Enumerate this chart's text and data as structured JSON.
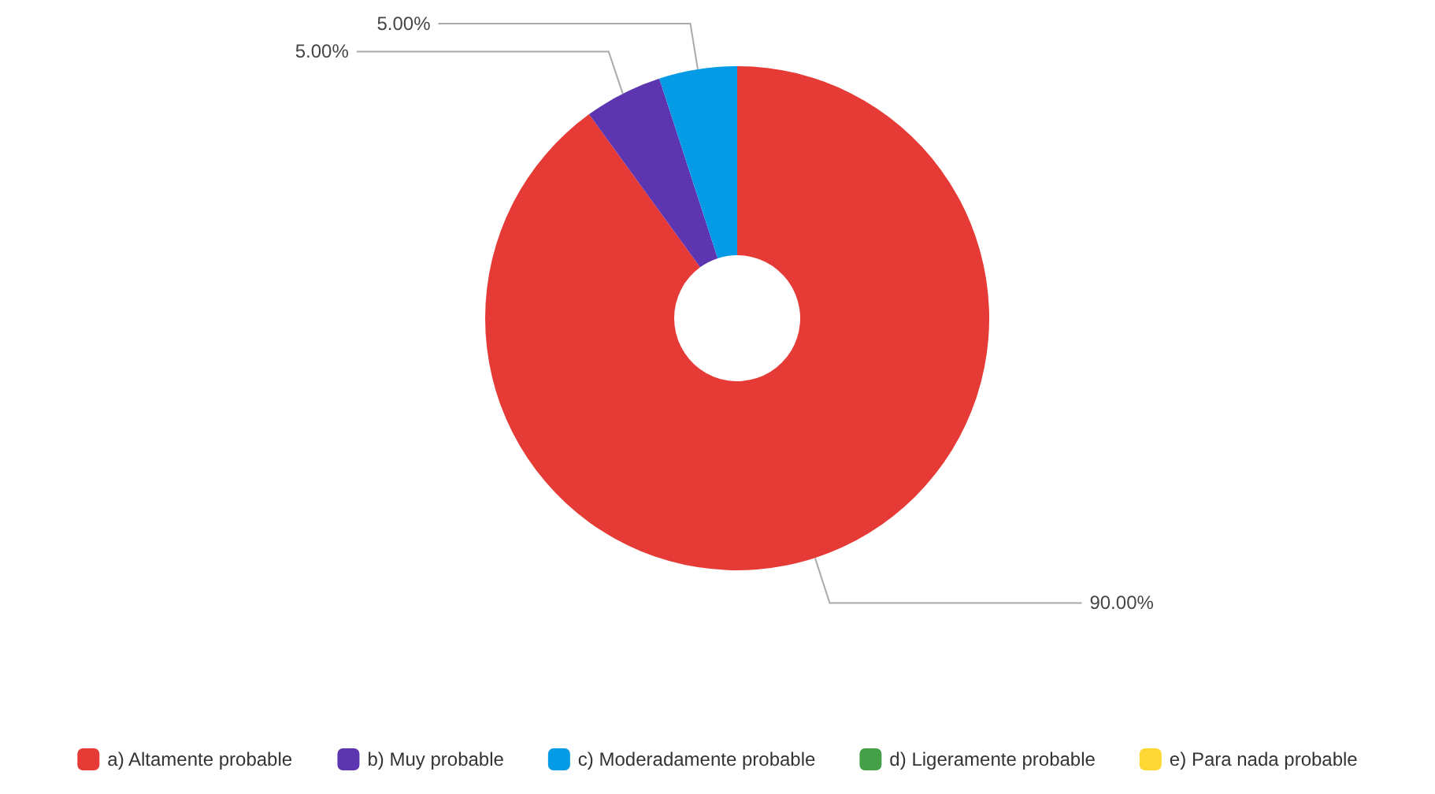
{
  "chart_data": {
    "type": "donut",
    "categories": [
      "a) Altamente probable",
      "b) Muy probable",
      "c) Moderadamente probable",
      "d) Ligeramente probable",
      "e) Para nada probable"
    ],
    "values": [
      90,
      5,
      5,
      0,
      0
    ],
    "colors": [
      "#e53a36",
      "#5e35b1",
      "#039be5",
      "#43a047",
      "#fdd835"
    ],
    "value_labels": [
      "90.00%",
      "5.00%",
      "5.00%",
      null,
      null
    ],
    "legend": "bottom"
  }
}
